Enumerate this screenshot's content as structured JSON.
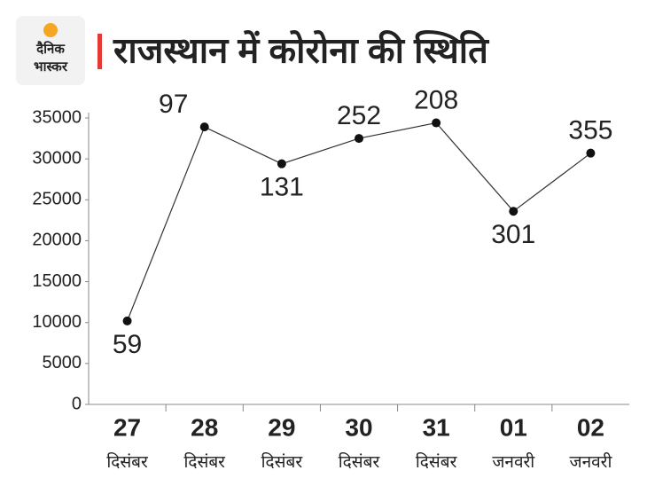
{
  "logo": [
    "दैनिक",
    "भास्कर"
  ],
  "chart_data": {
    "type": "line",
    "title": "राजस्थान में कोरोना की स्थिति",
    "categories": [
      "27",
      "28",
      "29",
      "30",
      "31",
      "01",
      "02"
    ],
    "category_sublabels": [
      "दिसंबर",
      "दिसंबर",
      "दिसंबर",
      "दिसंबर",
      "दिसंबर",
      "जनवरी",
      "जनवरी"
    ],
    "series": [
      {
        "color": "#333333",
        "values": [
          10200,
          33900,
          29400,
          32500,
          34400,
          23600,
          30700
        ]
      }
    ],
    "annotations": [
      "59",
      "97",
      "131",
      "252",
      "208",
      "301",
      "355"
    ],
    "ylim": [
      0,
      35000
    ],
    "yticks": [
      0,
      5000,
      10000,
      15000,
      20000,
      25000,
      30000,
      35000
    ],
    "grid": false
  }
}
